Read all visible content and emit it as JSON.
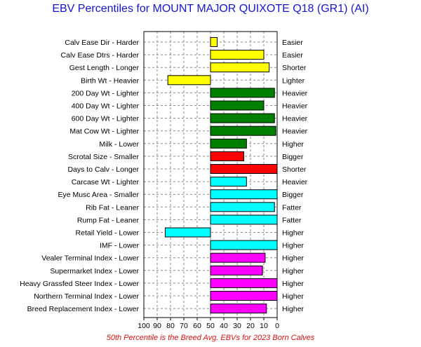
{
  "chart_data": {
    "type": "bar",
    "orientation": "horizontal",
    "title": "EBV Percentiles for MOUNT MAJOR QUIXOTE Q18 (GR1) (AI)",
    "footnote": "50th Percentile is the Breed Avg. EBVs for 2023 Born Calves",
    "x_ticks": [
      "100",
      "90",
      "80",
      "70",
      "60",
      "50",
      "40",
      "30",
      "20",
      "10",
      "0"
    ],
    "xlim": [
      100,
      0
    ],
    "baseline": 50,
    "grid": true,
    "categories": [
      "Calv Ease Dir - Harder",
      "Calv Ease Dtrs - Harder",
      "Gest Length - Longer",
      "Birth Wt - Heavier",
      "200 Day Wt - Lighter",
      "400 Day Wt - Lighter",
      "600 Day Wt - Lighter",
      "Mat Cow Wt - Lighter",
      "Milk - Lower",
      "Scrotal Size - Smaller",
      "Days to Calv - Longer",
      "Carcase Wt - Lighter",
      "Eye Musc Area - Smaller",
      "Rib Fat - Leaner",
      "Rump Fat - Leaner",
      "Retail Yield - Lower",
      "IMF - Lower",
      "Vealer Terminal Index - Lower",
      "Supermarket Index - Lower",
      "Heavy Grassfed Steer Index - Lower",
      "Northern Terminal Index - Lower",
      "Breed Replacement Index - Lower"
    ],
    "right_labels": [
      "Easier",
      "Easier",
      "Shorter",
      "Lighter",
      "Heavier",
      "Heavier",
      "Heavier",
      "Heavier",
      "Higher",
      "Bigger",
      "Shorter",
      "Heavier",
      "Bigger",
      "Fatter",
      "Fatter",
      "Higher",
      "Higher",
      "Higher",
      "Higher",
      "Higher",
      "Higher",
      "Higher"
    ],
    "values": [
      45,
      10,
      6,
      82,
      2,
      10,
      2,
      1,
      23,
      25,
      0,
      23,
      0,
      2,
      0,
      84,
      0,
      9,
      11,
      0,
      0,
      8
    ],
    "colors": [
      "#ffff00",
      "#ffff00",
      "#ffff00",
      "#ffff00",
      "#008000",
      "#008000",
      "#008000",
      "#008000",
      "#008000",
      "#ff0000",
      "#ff0000",
      "#00ffff",
      "#00ffff",
      "#00ffff",
      "#00ffff",
      "#00ffff",
      "#00ffff",
      "#ff00ff",
      "#ff00ff",
      "#ff00ff",
      "#ff00ff",
      "#ff00ff"
    ]
  }
}
